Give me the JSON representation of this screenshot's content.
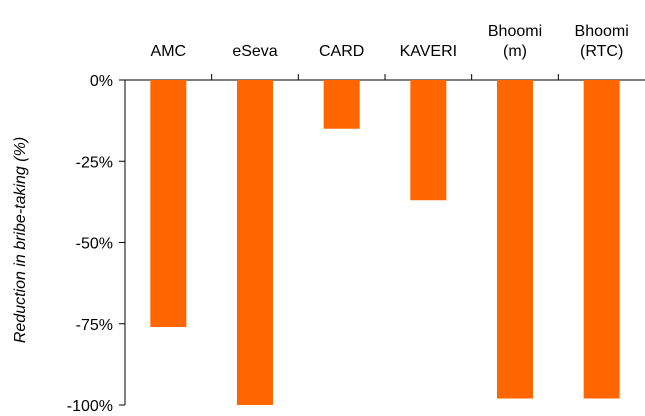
{
  "chart_data": {
    "type": "bar",
    "categories": [
      [
        "AMC"
      ],
      [
        "eSeva"
      ],
      [
        "CARD"
      ],
      [
        "KAVERI"
      ],
      [
        "Bhoomi",
        "(m)"
      ],
      [
        "Bhoomi",
        "(RTC)"
      ]
    ],
    "values": [
      -76,
      -100,
      -15,
      -37,
      -98,
      -98
    ],
    "ylabel": "Reduction in bribe-taking (%)",
    "ylim": [
      -100,
      0
    ],
    "yticks": [
      0,
      -25,
      -50,
      -75,
      -100
    ],
    "ytick_labels": [
      "0%",
      "-25%",
      "-50%",
      "-75%",
      "-100%"
    ],
    "category_axis_position": "top",
    "grid": false,
    "bar_color": "#FF6600"
  }
}
